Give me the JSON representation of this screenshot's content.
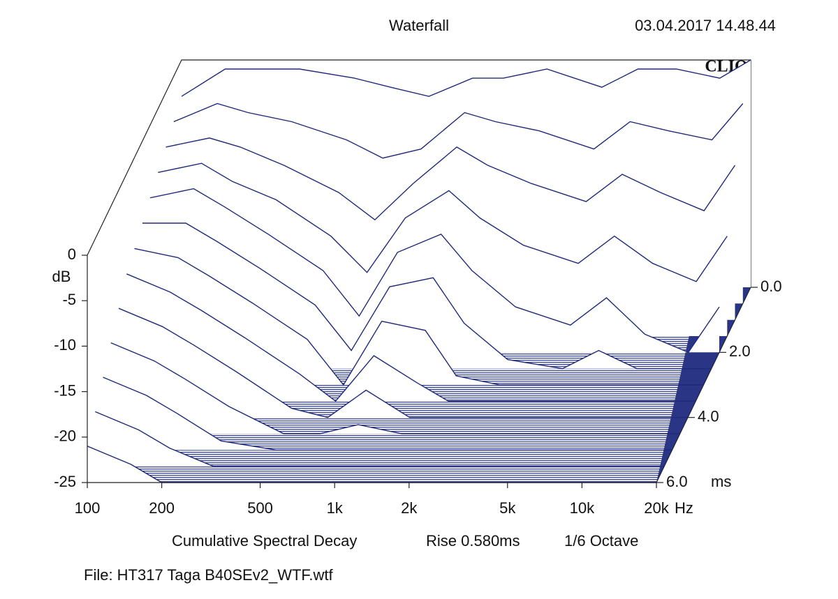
{
  "chart_data": {
    "type": "waterfall",
    "title": "Waterfall",
    "timestamp": "03.04.2017 14.48.44",
    "brand": "CLIO",
    "subtitle": [
      "Cumulative Spectral Decay",
      "Rise 0.580ms",
      "1/6 Octave"
    ],
    "file": "File: HT317 Taga B40SEv2_WTF.wtf",
    "ylabel": "dB",
    "xunit": "Hz",
    "zunit": "ms",
    "color": "#1f2a7a",
    "x": [
      100,
      150,
      200,
      300,
      500,
      700,
      1000,
      1500,
      2000,
      3000,
      5000,
      7000,
      10000,
      15000,
      20000
    ],
    "series": [
      {
        "time": 0,
        "values": [
          -4,
          -1,
          -1,
          -1,
          -2,
          -3,
          -4,
          -2,
          -2,
          -1,
          -3,
          -1,
          -1,
          -2,
          0
        ]
      },
      {
        "time": 0.5,
        "values": [
          -5,
          -3,
          -4,
          -5,
          -7,
          -9,
          -8,
          -4,
          -5,
          -6,
          -8,
          -5,
          -6,
          -7,
          -3
        ]
      },
      {
        "time": 1,
        "values": [
          -6,
          -5,
          -6,
          -8,
          -11,
          -14,
          -10,
          -6,
          -8,
          -10,
          -12,
          -9,
          -11,
          -13,
          -8
        ]
      },
      {
        "time": 1.5,
        "values": [
          -7,
          -6,
          -8,
          -10,
          -14,
          -18,
          -12,
          -9,
          -12,
          -15,
          -17,
          -14,
          -17,
          -19,
          -14
        ]
      },
      {
        "time": 2,
        "values": [
          -8,
          -7,
          -9,
          -12,
          -16,
          -21,
          -14,
          -12,
          -16,
          -20,
          -22,
          -19,
          -23,
          -25,
          -20
        ]
      },
      {
        "time": 2.5,
        "values": [
          -9,
          -9,
          -11,
          -14,
          -18,
          -23,
          -16,
          -15,
          -20,
          -24,
          -25,
          -23,
          -25,
          -25,
          -25
        ]
      },
      {
        "time": 3,
        "values": [
          -10,
          -11,
          -13,
          -16,
          -20,
          -25,
          -18,
          -19,
          -24,
          -25,
          -25,
          -25,
          -25,
          -25,
          -25
        ]
      },
      {
        "time": 3.5,
        "values": [
          -11,
          -13,
          -15,
          -18,
          -22,
          -25,
          -20,
          -23,
          -25,
          -25,
          -25,
          -25,
          -25,
          -25,
          -25
        ]
      },
      {
        "time": 4,
        "values": [
          -13,
          -15,
          -17,
          -20,
          -24,
          -25,
          -22,
          -25,
          -25,
          -25,
          -25,
          -25,
          -25,
          -25,
          -25
        ]
      },
      {
        "time": 4.5,
        "values": [
          -15,
          -17,
          -19,
          -22,
          -25,
          -25,
          -24,
          -25,
          -25,
          -25,
          -25,
          -25,
          -25,
          -25,
          -25
        ]
      },
      {
        "time": 5,
        "values": [
          -17,
          -19,
          -21,
          -24,
          -25,
          -25,
          -25,
          -25,
          -25,
          -25,
          -25,
          -25,
          -25,
          -25,
          -25
        ]
      },
      {
        "time": 5.5,
        "values": [
          -19,
          -21,
          -23,
          -25,
          -25,
          -25,
          -25,
          -25,
          -25,
          -25,
          -25,
          -25,
          -25,
          -25,
          -25
        ]
      },
      {
        "time": 6,
        "values": [
          -21,
          -23,
          -25,
          -25,
          -25,
          -25,
          -25,
          -25,
          -25,
          -25,
          -25,
          -25,
          -25,
          -25,
          -25
        ]
      }
    ],
    "xlim": [
      100,
      20000
    ],
    "ylim": [
      -25,
      0
    ],
    "zlim": [
      0,
      6
    ],
    "log_x": true,
    "xticks": [
      100,
      200,
      500,
      {
        "value": 1000,
        "label": "1k"
      },
      {
        "value": 2000,
        "label": "2k"
      },
      {
        "value": 5000,
        "label": "5k"
      },
      {
        "value": 10000,
        "label": "10k"
      },
      {
        "value": 20000,
        "label": "20k"
      }
    ],
    "yticks": [
      0,
      -5,
      -10,
      -15,
      -20,
      -25
    ],
    "zticks": [
      {
        "value": 0,
        "label": "0.0"
      },
      {
        "value": 2,
        "label": "2.0"
      },
      {
        "value": 4,
        "label": "4.0"
      },
      {
        "value": 6,
        "label": "6.0"
      }
    ]
  }
}
